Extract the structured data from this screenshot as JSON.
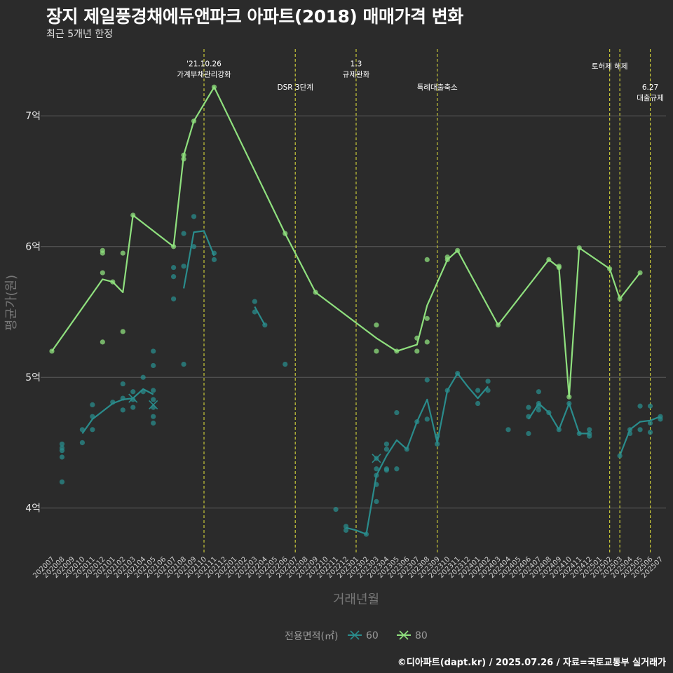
{
  "header": {
    "title": "장지 제일풍경채에듀앤파크 아파트(2018) 매매가격 변화",
    "subtitle": "최근 5개년 한정"
  },
  "footer": {
    "credit": "©디아파트(dapt.kr) / 2025.07.26 / 자료=국토교통부 실거래가"
  },
  "colors": {
    "background": "#2b2b2b",
    "grid": "#5a5a5a",
    "event_line": "#d6d63a",
    "series_60": "#2a8c8c",
    "series_80": "#8fe07e"
  },
  "chart_data": {
    "type": "line",
    "title": "장지 제일풍경채에듀앤파크 아파트(2018) 매매가격 변화",
    "subtitle": "최근 5개년 한정",
    "xlabel": "거래년월",
    "ylabel": "평균가(원)",
    "x_categories": [
      "202007",
      "202008",
      "202009",
      "202010",
      "202011",
      "202012",
      "202101",
      "202102",
      "202103",
      "202104",
      "202105",
      "202106",
      "202107",
      "202108",
      "202109",
      "202110",
      "202111",
      "202112",
      "202201",
      "202202",
      "202203",
      "202204",
      "202205",
      "202206",
      "202207",
      "202208",
      "202209",
      "202210",
      "202211",
      "202212",
      "202301",
      "202302",
      "202303",
      "202304",
      "202305",
      "202306",
      "202307",
      "202308",
      "202309",
      "202310",
      "202311",
      "202312",
      "202401",
      "202402",
      "202403",
      "202404",
      "202405",
      "202406",
      "202407",
      "202408",
      "202409",
      "202410",
      "202411",
      "202412",
      "202501",
      "202502",
      "202503",
      "202504",
      "202505",
      "202506",
      "202507"
    ],
    "ylim": [
      3.65,
      7.5
    ],
    "y_ticks": [
      {
        "value": 4,
        "label": "4억"
      },
      {
        "value": 5,
        "label": "5억"
      },
      {
        "value": 6,
        "label": "6억"
      },
      {
        "value": 7,
        "label": "7억"
      }
    ],
    "grid": true,
    "legend": {
      "title": "전용면적(㎡)",
      "placement": "bottom",
      "entries": [
        "60",
        "80"
      ]
    },
    "events": [
      {
        "x": "202110",
        "label": "'21.10.26\n가계부채관리강화",
        "label_y": 7.38
      },
      {
        "x": "202207",
        "label": "DSR 3단계",
        "label_y": 7.2
      },
      {
        "x": "202301",
        "label": "1.3\n규제완화",
        "label_y": 7.38
      },
      {
        "x": "202309",
        "label": "특례대출축소",
        "label_y": 7.2
      },
      {
        "x": "202502",
        "label": "토허제 해제",
        "label_y": 7.36
      },
      {
        "x": "202503",
        "label": "",
        "label_y": 7.2
      },
      {
        "x": "202506",
        "label": "6.27\n대출규제",
        "label_y": 7.2
      }
    ],
    "series": [
      {
        "name": "60",
        "color": "#2a8c8c",
        "line": [
          [
            "202010",
            4.57
          ],
          [
            "202011",
            4.68
          ],
          [
            "202012",
            4.74
          ],
          [
            "202101",
            4.8
          ],
          [
            "202102",
            4.83
          ],
          [
            "202103",
            4.84
          ],
          [
            "202104",
            4.91
          ],
          [
            "202105",
            4.87
          ],
          [
            "202108",
            5.68
          ],
          [
            "202109",
            6.11
          ],
          [
            "202110",
            6.12
          ],
          [
            "202111",
            5.93
          ],
          [
            "202203",
            5.54
          ],
          [
            "202204",
            5.4
          ],
          [
            "202212",
            3.85
          ],
          [
            "202301",
            3.83
          ],
          [
            "202302",
            3.8
          ],
          [
            "202303",
            4.25
          ],
          [
            "202304",
            4.4
          ],
          [
            "202305",
            4.52
          ],
          [
            "202306",
            4.45
          ],
          [
            "202307",
            4.66
          ],
          [
            "202308",
            4.83
          ],
          [
            "202309",
            4.5
          ],
          [
            "202310",
            4.9
          ],
          [
            "202311",
            5.03
          ],
          [
            "202312",
            4.93
          ],
          [
            "202401",
            4.84
          ],
          [
            "202402",
            4.93
          ],
          [
            "202406",
            4.68
          ],
          [
            "202407",
            4.8
          ],
          [
            "202408",
            4.73
          ],
          [
            "202409",
            4.6
          ],
          [
            "202410",
            4.8
          ],
          [
            "202411",
            4.57
          ],
          [
            "202412",
            4.57
          ],
          [
            "202503",
            4.4
          ],
          [
            "202504",
            4.6
          ],
          [
            "202505",
            4.66
          ],
          [
            "202506",
            4.67
          ],
          [
            "202507",
            4.7
          ]
        ],
        "points": [
          [
            "202008",
            4.49
          ],
          [
            "202008",
            4.46
          ],
          [
            "202008",
            4.44
          ],
          [
            "202008",
            4.39
          ],
          [
            "202008",
            4.2
          ],
          [
            "202010",
            4.6
          ],
          [
            "202010",
            4.5
          ],
          [
            "202011",
            4.79
          ],
          [
            "202011",
            4.7
          ],
          [
            "202011",
            4.6
          ],
          [
            "202101",
            4.81
          ],
          [
            "202102",
            4.95
          ],
          [
            "202102",
            4.84
          ],
          [
            "202102",
            4.75
          ],
          [
            "202103",
            4.89
          ],
          [
            "202103",
            4.83
          ],
          [
            "202103",
            4.77
          ],
          [
            "202104",
            5.0
          ],
          [
            "202104",
            4.89
          ],
          [
            "202105",
            5.2
          ],
          [
            "202105",
            5.09
          ],
          [
            "202105",
            4.9
          ],
          [
            "202105",
            4.83
          ],
          [
            "202105",
            4.77
          ],
          [
            "202105",
            4.7
          ],
          [
            "202105",
            4.65
          ],
          [
            "202107",
            5.84
          ],
          [
            "202107",
            5.77
          ],
          [
            "202107",
            5.6
          ],
          [
            "202108",
            6.1
          ],
          [
            "202108",
            5.85
          ],
          [
            "202108",
            5.1
          ],
          [
            "202109",
            6.23
          ],
          [
            "202109",
            6.0
          ],
          [
            "202111",
            5.95
          ],
          [
            "202111",
            5.9
          ],
          [
            "202203",
            5.58
          ],
          [
            "202203",
            5.5
          ],
          [
            "202204",
            5.4
          ],
          [
            "202206",
            5.1
          ],
          [
            "202211",
            3.99
          ],
          [
            "202212",
            3.86
          ],
          [
            "202212",
            3.83
          ],
          [
            "202302",
            3.8
          ],
          [
            "202303",
            4.38
          ],
          [
            "202303",
            4.3
          ],
          [
            "202303",
            4.25
          ],
          [
            "202303",
            4.18
          ],
          [
            "202303",
            4.05
          ],
          [
            "202304",
            4.49
          ],
          [
            "202304",
            4.45
          ],
          [
            "202304",
            4.3
          ],
          [
            "202304",
            4.29
          ],
          [
            "202305",
            4.73
          ],
          [
            "202305",
            4.3
          ],
          [
            "202306",
            4.45
          ],
          [
            "202307",
            4.66
          ],
          [
            "202308",
            4.98
          ],
          [
            "202308",
            4.68
          ],
          [
            "202309",
            4.55
          ],
          [
            "202309",
            4.49
          ],
          [
            "202310",
            4.9
          ],
          [
            "202311",
            5.03
          ],
          [
            "202401",
            4.9
          ],
          [
            "202401",
            4.8
          ],
          [
            "202402",
            4.97
          ],
          [
            "202402",
            4.9
          ],
          [
            "202404",
            4.6
          ],
          [
            "202406",
            4.77
          ],
          [
            "202406",
            4.7
          ],
          [
            "202406",
            4.57
          ],
          [
            "202407",
            4.89
          ],
          [
            "202407",
            4.8
          ],
          [
            "202407",
            4.78
          ],
          [
            "202407",
            4.75
          ],
          [
            "202408",
            4.73
          ],
          [
            "202409",
            4.6
          ],
          [
            "202410",
            4.8
          ],
          [
            "202411",
            4.57
          ],
          [
            "202412",
            4.6
          ],
          [
            "202412",
            4.57
          ],
          [
            "202412",
            4.55
          ],
          [
            "202503",
            4.4
          ],
          [
            "202504",
            4.6
          ],
          [
            "202504",
            4.57
          ],
          [
            "202505",
            4.78
          ],
          [
            "202505",
            4.6
          ],
          [
            "202506",
            4.78
          ],
          [
            "202506",
            4.65
          ],
          [
            "202506",
            4.58
          ],
          [
            "202507",
            4.7
          ],
          [
            "202507",
            4.68
          ]
        ],
        "cancelled": [
          [
            "202103",
            4.84
          ],
          [
            "202105",
            4.79
          ],
          [
            "202303",
            4.38
          ]
        ]
      },
      {
        "name": "80",
        "color": "#8fe07e",
        "line": [
          [
            "202007",
            5.2
          ],
          [
            "202012",
            5.75
          ],
          [
            "202101",
            5.73
          ],
          [
            "202102",
            5.65
          ],
          [
            "202103",
            6.24
          ],
          [
            "202107",
            6.0
          ],
          [
            "202108",
            6.7
          ],
          [
            "202109",
            6.96
          ],
          [
            "202111",
            7.22
          ],
          [
            "202206",
            6.1
          ],
          [
            "202209",
            5.65
          ],
          [
            "202303",
            5.3
          ],
          [
            "202305",
            5.2
          ],
          [
            "202307",
            5.25
          ],
          [
            "202308",
            5.55
          ],
          [
            "202310",
            5.9
          ],
          [
            "202311",
            5.97
          ],
          [
            "202403",
            5.4
          ],
          [
            "202408",
            5.9
          ],
          [
            "202409",
            5.84
          ],
          [
            "202410",
            4.85
          ],
          [
            "202411",
            5.99
          ],
          [
            "202502",
            5.83
          ],
          [
            "202503",
            5.6
          ],
          [
            "202505",
            5.8
          ]
        ],
        "points": [
          [
            "202007",
            5.2
          ],
          [
            "202012",
            5.97
          ],
          [
            "202012",
            5.95
          ],
          [
            "202012",
            5.8
          ],
          [
            "202012",
            5.27
          ],
          [
            "202101",
            5.73
          ],
          [
            "202102",
            5.95
          ],
          [
            "202102",
            5.35
          ],
          [
            "202103",
            6.24
          ],
          [
            "202107",
            6.0
          ],
          [
            "202108",
            6.7
          ],
          [
            "202108",
            6.67
          ],
          [
            "202109",
            6.96
          ],
          [
            "202111",
            7.22
          ],
          [
            "202206",
            6.1
          ],
          [
            "202209",
            5.65
          ],
          [
            "202303",
            5.4
          ],
          [
            "202303",
            5.2
          ],
          [
            "202305",
            5.2
          ],
          [
            "202307",
            5.3
          ],
          [
            "202307",
            5.2
          ],
          [
            "202308",
            5.9
          ],
          [
            "202308",
            5.45
          ],
          [
            "202308",
            5.27
          ],
          [
            "202310",
            5.92
          ],
          [
            "202310",
            5.9
          ],
          [
            "202311",
            5.97
          ],
          [
            "202403",
            5.4
          ],
          [
            "202408",
            5.9
          ],
          [
            "202409",
            5.85
          ],
          [
            "202409",
            5.84
          ],
          [
            "202410",
            4.85
          ],
          [
            "202411",
            5.99
          ],
          [
            "202502",
            5.83
          ],
          [
            "202503",
            5.6
          ],
          [
            "202505",
            5.8
          ]
        ],
        "cancelled": []
      }
    ]
  }
}
